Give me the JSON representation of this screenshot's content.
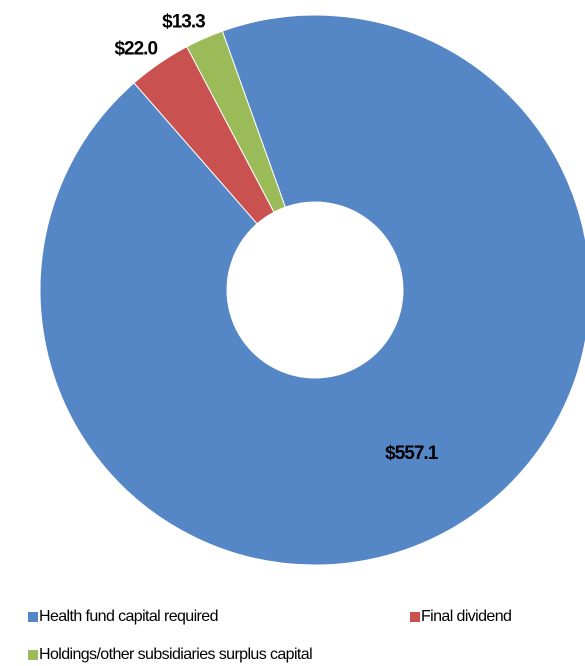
{
  "chart_data": {
    "type": "donut",
    "categories": [
      "Health fund capital required",
      "Final dividend",
      "Holdings/other subsidiaries surplus capital"
    ],
    "values": [
      557.1,
      22.0,
      13.3
    ],
    "value_labels": [
      "$557.1",
      "$22.0",
      "$13.3"
    ],
    "colors": [
      "#5586c6",
      "#c9514f",
      "#9bbb59"
    ]
  }
}
